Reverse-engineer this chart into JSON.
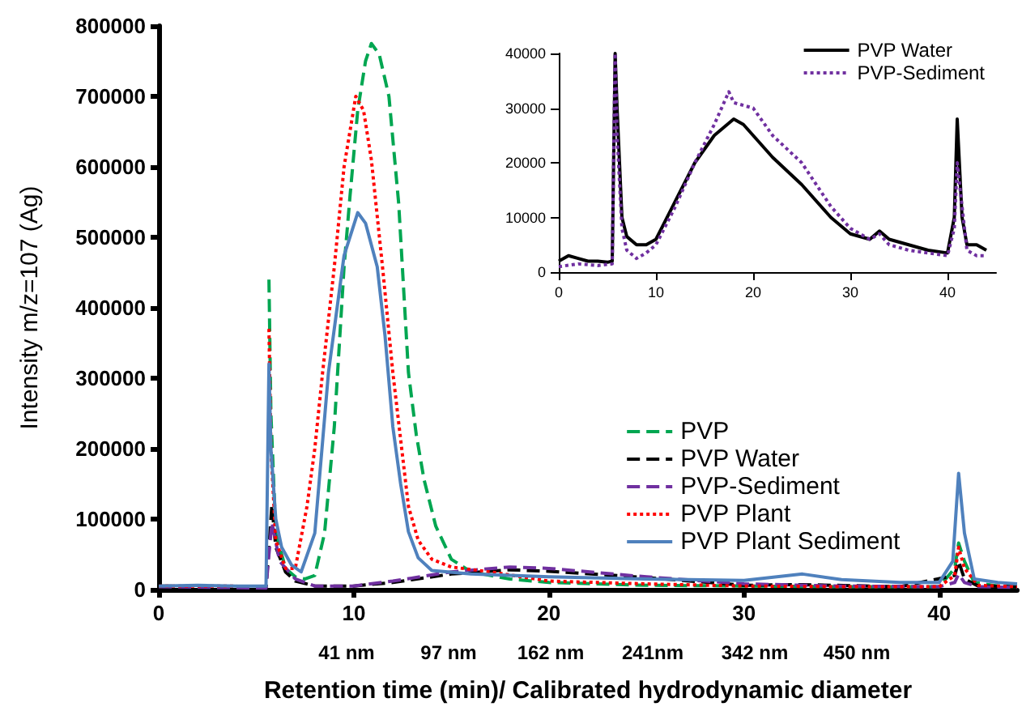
{
  "chart_data": [
    {
      "type": "line",
      "xlabel": "Retention time (min)/ Calibrated hydrodynamic diameter",
      "ylabel": "Intensity m/z=107 (Ag)",
      "xlim": [
        0,
        44
      ],
      "xticks": [
        0,
        10,
        20,
        30,
        40
      ],
      "ylim": [
        0,
        800000
      ],
      "yticks": [
        0,
        100000,
        200000,
        300000,
        400000,
        500000,
        600000,
        700000,
        800000
      ],
      "grid": false,
      "legend": "bottom right",
      "marker": "none",
      "annotations": [
        "41 nm",
        "97 nm",
        "162 nm",
        "241nm",
        "342 nm",
        "450 nm"
      ],
      "series": [
        {
          "name": "PVP",
          "color": "#00a651",
          "line_style": "dashed",
          "x": [
            5.65,
            5.75,
            6,
            6.5,
            7,
            7.5,
            8,
            8.5,
            9,
            9.5,
            9.8,
            10.2,
            10.6,
            10.9,
            11.3,
            11.8,
            12.3,
            12.8,
            13.2,
            13.6,
            14.2,
            15,
            16,
            18,
            20,
            25,
            30,
            35,
            40,
            40.8,
            41,
            41.3,
            41.8,
            43,
            44
          ],
          "values": [
            440000,
            250000,
            80000,
            30000,
            18000,
            15000,
            20000,
            80000,
            231000,
            458000,
            557000,
            680000,
            750000,
            775000,
            760000,
            700000,
            548000,
            308000,
            220000,
            156000,
            90000,
            43000,
            25000,
            15000,
            10000,
            6000,
            5000,
            4000,
            4000,
            30000,
            66000,
            40000,
            10000,
            5000,
            4000
          ]
        },
        {
          "name": "PVP Water",
          "color": "#000000",
          "line_style": "dashed",
          "x": [
            0,
            3,
            5.5,
            5.65,
            5.8,
            6,
            6.5,
            7,
            8,
            10,
            12,
            15,
            18,
            20,
            25,
            30,
            33,
            38,
            40.8,
            41,
            41.3,
            42,
            44
          ],
          "values": [
            5000,
            4000,
            3000,
            60000,
            120000,
            60000,
            25000,
            12000,
            5000,
            5000,
            10000,
            22000,
            28000,
            26000,
            17000,
            6000,
            7000,
            4000,
            20000,
            40000,
            15000,
            5000,
            4000
          ]
        },
        {
          "name": "PVP-Sediment",
          "color": "#7030a0",
          "line_style": "dashed",
          "x": [
            0,
            3,
            5.5,
            5.65,
            5.8,
            6.2,
            7,
            8,
            10,
            12,
            15,
            18,
            20,
            25,
            30,
            35,
            40,
            40.8,
            41,
            41.3,
            42,
            44
          ],
          "values": [
            4000,
            3000,
            2000,
            50000,
            95000,
            40000,
            15000,
            5000,
            5000,
            12000,
            25000,
            32000,
            30000,
            18000,
            8000,
            5000,
            4000,
            10000,
            22000,
            10000,
            4000,
            3000
          ]
        },
        {
          "name": "PVP Plant",
          "color": "#ff0000",
          "line_style": "dotted",
          "x": [
            0,
            2,
            4,
            5.5,
            5.65,
            5.75,
            6,
            6.5,
            7,
            7.6,
            8,
            8.4,
            9,
            9.5,
            10.1,
            10.5,
            10.9,
            11.5,
            12,
            12.8,
            13.3,
            14,
            15,
            17,
            20,
            25,
            30,
            35,
            40,
            40.8,
            41,
            41.3,
            42,
            44
          ],
          "values": [
            5000,
            5000,
            5000,
            null,
            370000,
            200000,
            70000,
            30000,
            30000,
            118000,
            200000,
            308000,
            458000,
            600000,
            700000,
            680000,
            610000,
            450000,
            308000,
            118000,
            70000,
            43000,
            32000,
            25000,
            12000,
            8000,
            5000,
            4000,
            4000,
            20000,
            60000,
            30000,
            6000,
            4000
          ]
        },
        {
          "name": "PVP Plant Sediment",
          "color": "#4f81bd",
          "line_style": "solid",
          "x": [
            0,
            2,
            4,
            5.5,
            5.65,
            5.75,
            6,
            6.3,
            6.8,
            7.3,
            8,
            8.7,
            9.5,
            10.2,
            10.6,
            11.2,
            11.6,
            12,
            12.4,
            12.8,
            13.3,
            14,
            16,
            18,
            20,
            25,
            30,
            33,
            35,
            38,
            40,
            40.7,
            41,
            41.3,
            41.8,
            43,
            44
          ],
          "values": [
            5000,
            6000,
            5000,
            5000,
            320000,
            200000,
            100000,
            60000,
            35000,
            25000,
            80000,
            308000,
            474000,
            535000,
            520000,
            458000,
            360000,
            231000,
            150000,
            82000,
            45000,
            27000,
            22000,
            20000,
            18000,
            15000,
            13000,
            22000,
            14000,
            10000,
            10000,
            40000,
            165000,
            80000,
            15000,
            10000,
            8000
          ]
        }
      ]
    },
    {
      "type": "line",
      "xlim": [
        0,
        45
      ],
      "xticks": [
        0,
        10,
        20,
        30,
        40
      ],
      "ylim": [
        0,
        40000
      ],
      "yticks": [
        0,
        10000,
        20000,
        30000,
        40000
      ],
      "grid": false,
      "legend": "top right",
      "marker": "none",
      "series": [
        {
          "name": "PVP Water",
          "color": "#000000",
          "line_style": "solid",
          "x": [
            0,
            1,
            2,
            3,
            4,
            5,
            5.5,
            5.8,
            6,
            6.5,
            7,
            8,
            9,
            10,
            12,
            14,
            16,
            18,
            19,
            20,
            22,
            25,
            28,
            30,
            32,
            33,
            34,
            36,
            38,
            40,
            40.7,
            41,
            41.5,
            42,
            43,
            44
          ],
          "values": [
            2000,
            3000,
            2500,
            2000,
            2000,
            1800,
            2000,
            40000,
            30000,
            10000,
            6500,
            5000,
            5000,
            6000,
            13000,
            20000,
            25000,
            28000,
            27000,
            25000,
            21000,
            16000,
            10000,
            7000,
            6000,
            7500,
            6000,
            5000,
            4000,
            3500,
            10000,
            28000,
            10000,
            5000,
            5000,
            4000
          ]
        },
        {
          "name": "PVP-Sediment",
          "color": "#7030a0",
          "line_style": "dotted",
          "x": [
            0,
            2,
            4,
            5.5,
            5.8,
            6,
            6.5,
            7,
            8,
            9,
            10,
            12,
            14,
            16,
            17.5,
            18,
            20,
            22,
            25,
            28,
            30,
            32,
            33,
            34,
            36,
            38,
            40,
            40.7,
            41,
            41.5,
            42,
            43,
            44
          ],
          "values": [
            1000,
            1500,
            1200,
            1500,
            40000,
            25000,
            8000,
            4000,
            2500,
            3500,
            5000,
            12000,
            20000,
            27000,
            33000,
            31000,
            30000,
            25000,
            20000,
            12000,
            8000,
            6000,
            7000,
            5000,
            4000,
            3500,
            3000,
            8000,
            20000,
            12000,
            4000,
            3000,
            3000
          ]
        }
      ]
    }
  ]
}
